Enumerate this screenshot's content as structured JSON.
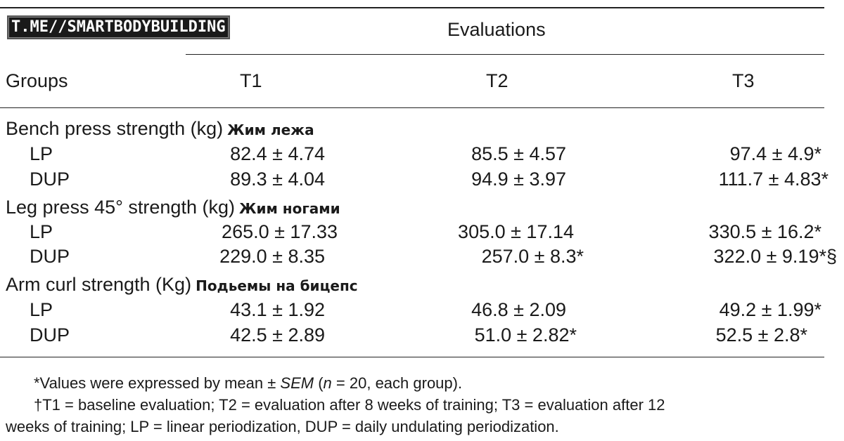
{
  "watermark": "T.ME//SMARTBODYBUILDING",
  "header": {
    "evaluations": "Evaluations",
    "groups": "Groups",
    "cols": [
      "T1",
      "T2",
      "T3"
    ]
  },
  "sections": [
    {
      "label": "Bench press strength (kg)",
      "label_ru": "Жим лежа",
      "rows": [
        {
          "group": "LP",
          "t1": "82.4 ± 4.74",
          "t2": "85.5 ± 4.57",
          "t3": "97.4 ± 4.9*"
        },
        {
          "group": "DUP",
          "t1": "89.3 ± 4.04",
          "t2": "94.9 ± 3.97",
          "t3": "111.7 ± 4.83*"
        }
      ]
    },
    {
      "label": "Leg press 45° strength (kg)",
      "label_ru": "Жим ногами",
      "rows": [
        {
          "group": "LP",
          "t1": "265.0 ± 17.33",
          "t2": "305.0 ± 17.14",
          "t3": "330.5 ± 16.2*"
        },
        {
          "group": "DUP",
          "t1": "229.0 ± 8.35",
          "t2": "257.0 ± 8.3*",
          "t3": "322.0 ± 9.19*§"
        }
      ]
    },
    {
      "label": "Arm curl strength (Kg)",
      "label_ru": "Подьемы на бицепс",
      "rows": [
        {
          "group": "LP",
          "t1": "43.1 ± 1.92",
          "t2": "46.8 ± 2.09",
          "t3": "49.2 ± 1.99*"
        },
        {
          "group": "DUP",
          "t1": "42.5 ± 2.89",
          "t2": "51.0 ± 2.82*",
          "t3": "52.5 ± 2.8*"
        }
      ]
    }
  ],
  "footnotes": {
    "line1_pre": "*Values were expressed by mean ± ",
    "line1_sem": "SEM",
    "line1_open": " (",
    "line1_n": "n",
    "line1_post": " = 20, each group).",
    "line2": "†T1 = baseline evaluation; T2 = evaluation after 8 weeks of training; T3 = evaluation after 12",
    "line3": "weeks of training; LP = linear periodization, DUP = daily undulating periodization."
  }
}
